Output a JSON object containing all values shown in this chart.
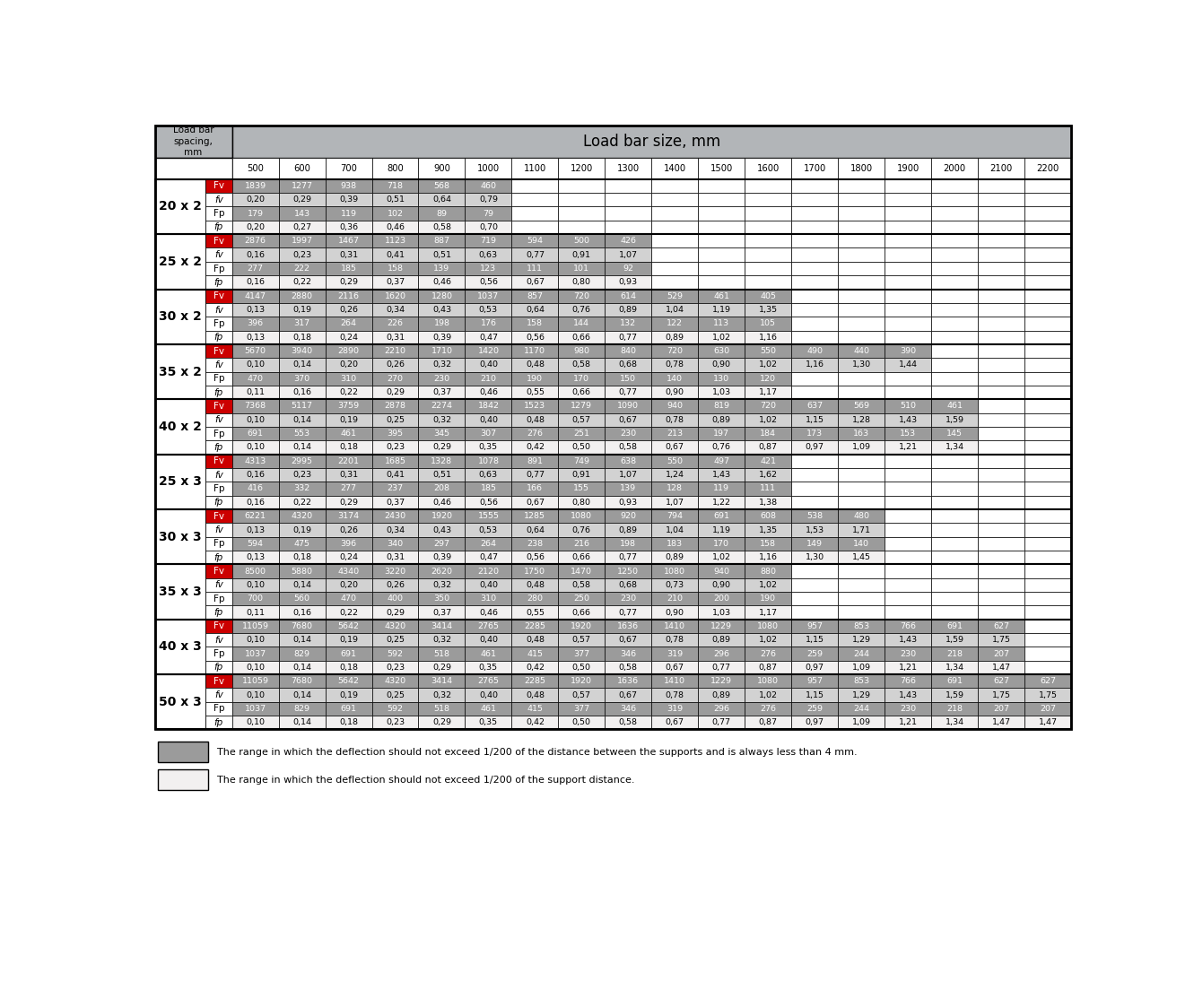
{
  "title": "Load bar size, mm",
  "col_header_label": "Load bar\nspacing,\nmm",
  "col_sizes": [
    500,
    600,
    700,
    800,
    900,
    1000,
    1100,
    1200,
    1300,
    1400,
    1500,
    1600,
    1700,
    1800,
    1900,
    2000,
    2100,
    2200
  ],
  "row_groups": [
    {
      "label": "20 x 2",
      "rows": [
        {
          "label": "Fv",
          "values": [
            "1839",
            "1277",
            "938",
            "718",
            "568",
            "460",
            "",
            "",
            "",
            "",
            "",
            "",
            "",
            "",
            "",
            "",
            "",
            ""
          ],
          "type": "Fv"
        },
        {
          "label": "fv",
          "values": [
            "0,20",
            "0,29",
            "0,39",
            "0,51",
            "0,64",
            "0,79",
            "",
            "",
            "",
            "",
            "",
            "",
            "",
            "",
            "",
            "",
            "",
            ""
          ],
          "type": "fv"
        },
        {
          "label": "Fp",
          "values": [
            "179",
            "143",
            "119",
            "102",
            "89",
            "79",
            "",
            "",
            "",
            "",
            "",
            "",
            "",
            "",
            "",
            "",
            "",
            ""
          ],
          "type": "Fp"
        },
        {
          "label": "fp",
          "values": [
            "0,20",
            "0,27",
            "0,36",
            "0,46",
            "0,58",
            "0,70",
            "",
            "",
            "",
            "",
            "",
            "",
            "",
            "",
            "",
            "",
            "",
            ""
          ],
          "type": "fp"
        }
      ]
    },
    {
      "label": "25 x 2",
      "rows": [
        {
          "label": "Fv",
          "values": [
            "2876",
            "1997",
            "1467",
            "1123",
            "887",
            "719",
            "594",
            "500",
            "426",
            "",
            "",
            "",
            "",
            "",
            "",
            "",
            "",
            ""
          ],
          "type": "Fv"
        },
        {
          "label": "fv",
          "values": [
            "0,16",
            "0,23",
            "0,31",
            "0,41",
            "0,51",
            "0,63",
            "0,77",
            "0,91",
            "1,07",
            "",
            "",
            "",
            "",
            "",
            "",
            "",
            "",
            ""
          ],
          "type": "fv"
        },
        {
          "label": "Fp",
          "values": [
            "277",
            "222",
            "185",
            "158",
            "139",
            "123",
            "111",
            "101",
            "92",
            "",
            "",
            "",
            "",
            "",
            "",
            "",
            "",
            ""
          ],
          "type": "Fp"
        },
        {
          "label": "fp",
          "values": [
            "0,16",
            "0,22",
            "0,29",
            "0,37",
            "0,46",
            "0,56",
            "0,67",
            "0,80",
            "0,93",
            "",
            "",
            "",
            "",
            "",
            "",
            "",
            "",
            ""
          ],
          "type": "fp"
        }
      ]
    },
    {
      "label": "30 x 2",
      "rows": [
        {
          "label": "Fv",
          "values": [
            "4147",
            "2880",
            "2116",
            "1620",
            "1280",
            "1037",
            "857",
            "720",
            "614",
            "529",
            "461",
            "405",
            "",
            "",
            "",
            "",
            "",
            ""
          ],
          "type": "Fv"
        },
        {
          "label": "fv",
          "values": [
            "0,13",
            "0,19",
            "0,26",
            "0,34",
            "0,43",
            "0,53",
            "0,64",
            "0,76",
            "0,89",
            "1,04",
            "1,19",
            "1,35",
            "",
            "",
            "",
            "",
            "",
            ""
          ],
          "type": "fv"
        },
        {
          "label": "Fp",
          "values": [
            "396",
            "317",
            "264",
            "226",
            "198",
            "176",
            "158",
            "144",
            "132",
            "122",
            "113",
            "105",
            "",
            "",
            "",
            "",
            "",
            ""
          ],
          "type": "Fp"
        },
        {
          "label": "fp",
          "values": [
            "0,13",
            "0,18",
            "0,24",
            "0,31",
            "0,39",
            "0,47",
            "0,56",
            "0,66",
            "0,77",
            "0,89",
            "1,02",
            "1,16",
            "",
            "",
            "",
            "",
            "",
            ""
          ],
          "type": "fp"
        }
      ]
    },
    {
      "label": "35 x 2",
      "rows": [
        {
          "label": "Fv",
          "values": [
            "5670",
            "3940",
            "2890",
            "2210",
            "1710",
            "1420",
            "1170",
            "980",
            "840",
            "720",
            "630",
            "550",
            "490",
            "440",
            "390",
            "",
            "",
            ""
          ],
          "type": "Fv"
        },
        {
          "label": "fv",
          "values": [
            "0,10",
            "0,14",
            "0,20",
            "0,26",
            "0,32",
            "0,40",
            "0,48",
            "0,58",
            "0,68",
            "0,78",
            "0,90",
            "1,02",
            "1,16",
            "1,30",
            "1,44",
            "",
            "",
            ""
          ],
          "type": "fv"
        },
        {
          "label": "Fp",
          "values": [
            "470",
            "370",
            "310",
            "270",
            "230",
            "210",
            "190",
            "170",
            "150",
            "140",
            "130",
            "120",
            "",
            "",
            "",
            "",
            "",
            ""
          ],
          "type": "Fp"
        },
        {
          "label": "fp",
          "values": [
            "0,11",
            "0,16",
            "0,22",
            "0,29",
            "0,37",
            "0,46",
            "0,55",
            "0,66",
            "0,77",
            "0,90",
            "1,03",
            "1,17",
            "",
            "",
            "",
            "",
            "",
            ""
          ],
          "type": "fp"
        }
      ]
    },
    {
      "label": "40 x 2",
      "rows": [
        {
          "label": "Fv",
          "values": [
            "7368",
            "5117",
            "3759",
            "2878",
            "2274",
            "1842",
            "1523",
            "1279",
            "1090",
            "940",
            "819",
            "720",
            "637",
            "569",
            "510",
            "461",
            "",
            ""
          ],
          "type": "Fv"
        },
        {
          "label": "fv",
          "values": [
            "0,10",
            "0,14",
            "0,19",
            "0,25",
            "0,32",
            "0,40",
            "0,48",
            "0,57",
            "0,67",
            "0,78",
            "0,89",
            "1,02",
            "1,15",
            "1,28",
            "1,43",
            "1,59",
            "",
            ""
          ],
          "type": "fv"
        },
        {
          "label": "Fp",
          "values": [
            "691",
            "553",
            "461",
            "395",
            "345",
            "307",
            "276",
            "251",
            "230",
            "213",
            "197",
            "184",
            "173",
            "163",
            "153",
            "145",
            "",
            ""
          ],
          "type": "Fp"
        },
        {
          "label": "fp",
          "values": [
            "0,10",
            "0,14",
            "0,18",
            "0,23",
            "0,29",
            "0,35",
            "0,42",
            "0,50",
            "0,58",
            "0,67",
            "0,76",
            "0,87",
            "0,97",
            "1,09",
            "1,21",
            "1,34",
            "",
            ""
          ],
          "type": "fp"
        }
      ]
    },
    {
      "label": "25 x 3",
      "rows": [
        {
          "label": "Fv",
          "values": [
            "4313",
            "2995",
            "2201",
            "1685",
            "1328",
            "1078",
            "891",
            "749",
            "638",
            "550",
            "497",
            "421",
            "",
            "",
            "",
            "",
            "",
            ""
          ],
          "type": "Fv"
        },
        {
          "label": "fv",
          "values": [
            "0,16",
            "0,23",
            "0,31",
            "0,41",
            "0,51",
            "0,63",
            "0,77",
            "0,91",
            "1,07",
            "1,24",
            "1,43",
            "1,62",
            "",
            "",
            "",
            "",
            "",
            ""
          ],
          "type": "fv"
        },
        {
          "label": "Fp",
          "values": [
            "416",
            "332",
            "277",
            "237",
            "208",
            "185",
            "166",
            "155",
            "139",
            "128",
            "119",
            "111",
            "",
            "",
            "",
            "",
            "",
            ""
          ],
          "type": "Fp"
        },
        {
          "label": "fp",
          "values": [
            "0,16",
            "0,22",
            "0,29",
            "0,37",
            "0,46",
            "0,56",
            "0,67",
            "0,80",
            "0,93",
            "1,07",
            "1,22",
            "1,38",
            "",
            "",
            "",
            "",
            "",
            ""
          ],
          "type": "fp"
        }
      ]
    },
    {
      "label": "30 x 3",
      "rows": [
        {
          "label": "Fv",
          "values": [
            "6221",
            "4320",
            "3174",
            "2430",
            "1920",
            "1555",
            "1285",
            "1080",
            "920",
            "794",
            "691",
            "608",
            "538",
            "480",
            "",
            "",
            "",
            ""
          ],
          "type": "Fv"
        },
        {
          "label": "fv",
          "values": [
            "0,13",
            "0,19",
            "0,26",
            "0,34",
            "0,43",
            "0,53",
            "0,64",
            "0,76",
            "0,89",
            "1,04",
            "1,19",
            "1,35",
            "1,53",
            "1,71",
            "",
            "",
            "",
            ""
          ],
          "type": "fv"
        },
        {
          "label": "Fp",
          "values": [
            "594",
            "475",
            "396",
            "340",
            "297",
            "264",
            "238",
            "216",
            "198",
            "183",
            "170",
            "158",
            "149",
            "140",
            "",
            "",
            "",
            ""
          ],
          "type": "Fp"
        },
        {
          "label": "fp",
          "values": [
            "0,13",
            "0,18",
            "0,24",
            "0,31",
            "0,39",
            "0,47",
            "0,56",
            "0,66",
            "0,77",
            "0,89",
            "1,02",
            "1,16",
            "1,30",
            "1,45",
            "",
            "",
            "",
            ""
          ],
          "type": "fp"
        }
      ]
    },
    {
      "label": "35 x 3",
      "rows": [
        {
          "label": "Fv",
          "values": [
            "8500",
            "5880",
            "4340",
            "3220",
            "2620",
            "2120",
            "1750",
            "1470",
            "1250",
            "1080",
            "940",
            "880",
            "",
            "",
            "",
            "",
            "",
            ""
          ],
          "type": "Fv"
        },
        {
          "label": "fv",
          "values": [
            "0,10",
            "0,14",
            "0,20",
            "0,26",
            "0,32",
            "0,40",
            "0,48",
            "0,58",
            "0,68",
            "0,73",
            "0,90",
            "1,02",
            "",
            "",
            "",
            "",
            "",
            ""
          ],
          "type": "fv"
        },
        {
          "label": "Fp",
          "values": [
            "700",
            "560",
            "470",
            "400",
            "350",
            "310",
            "280",
            "250",
            "230",
            "210",
            "200",
            "190",
            "",
            "",
            "",
            "",
            "",
            ""
          ],
          "type": "Fp"
        },
        {
          "label": "fp",
          "values": [
            "0,11",
            "0,16",
            "0,22",
            "0,29",
            "0,37",
            "0,46",
            "0,55",
            "0,66",
            "0,77",
            "0,90",
            "1,03",
            "1,17",
            "",
            "",
            "",
            "",
            "",
            ""
          ],
          "type": "fp"
        }
      ]
    },
    {
      "label": "40 x 3",
      "rows": [
        {
          "label": "Fv",
          "values": [
            "11059",
            "7680",
            "5642",
            "4320",
            "3414",
            "2765",
            "2285",
            "1920",
            "1636",
            "1410",
            "1229",
            "1080",
            "957",
            "853",
            "766",
            "691",
            "627",
            ""
          ],
          "type": "Fv"
        },
        {
          "label": "fv",
          "values": [
            "0,10",
            "0,14",
            "0,19",
            "0,25",
            "0,32",
            "0,40",
            "0,48",
            "0,57",
            "0,67",
            "0,78",
            "0,89",
            "1,02",
            "1,15",
            "1,29",
            "1,43",
            "1,59",
            "1,75",
            ""
          ],
          "type": "fv"
        },
        {
          "label": "Fp",
          "values": [
            "1037",
            "829",
            "691",
            "592",
            "518",
            "461",
            "415",
            "377",
            "346",
            "319",
            "296",
            "276",
            "259",
            "244",
            "230",
            "218",
            "207",
            ""
          ],
          "type": "Fp"
        },
        {
          "label": "fp",
          "values": [
            "0,10",
            "0,14",
            "0,18",
            "0,23",
            "0,29",
            "0,35",
            "0,42",
            "0,50",
            "0,58",
            "0,67",
            "0,77",
            "0,87",
            "0,97",
            "1,09",
            "1,21",
            "1,34",
            "1,47",
            ""
          ],
          "type": "fp"
        }
      ]
    },
    {
      "label": "50 x 3",
      "rows": [
        {
          "label": "Fv",
          "values": [
            "11059",
            "7680",
            "5642",
            "4320",
            "3414",
            "2765",
            "2285",
            "1920",
            "1636",
            "1410",
            "1229",
            "1080",
            "957",
            "853",
            "766",
            "691",
            "627",
            "627"
          ],
          "type": "Fv"
        },
        {
          "label": "fv",
          "values": [
            "0,10",
            "0,14",
            "0,19",
            "0,25",
            "0,32",
            "0,40",
            "0,48",
            "0,57",
            "0,67",
            "0,78",
            "0,89",
            "1,02",
            "1,15",
            "1,29",
            "1,43",
            "1,59",
            "1,75",
            "1,75"
          ],
          "type": "fv"
        },
        {
          "label": "Fp",
          "values": [
            "1037",
            "829",
            "691",
            "592",
            "518",
            "461",
            "415",
            "377",
            "346",
            "319",
            "296",
            "276",
            "259",
            "244",
            "230",
            "218",
            "207",
            "207"
          ],
          "type": "Fp"
        },
        {
          "label": "fp",
          "values": [
            "0,10",
            "0,14",
            "0,18",
            "0,23",
            "0,29",
            "0,35",
            "0,42",
            "0,50",
            "0,58",
            "0,67",
            "0,77",
            "0,87",
            "0,97",
            "1,09",
            "1,21",
            "1,34",
            "1,47",
            "1,47"
          ],
          "type": "fp"
        }
      ]
    }
  ],
  "colors": {
    "header_bg": "#b2b5b8",
    "Fv_label_bg": "#cc0000",
    "Fv_label_fg": "#ffffff",
    "Fv_cell_bg": "#9b9b9b",
    "Fv_cell_fg": "#ffffff",
    "fv_label_bg": "#ffffff",
    "fv_label_fg": "#000000",
    "fv_cell_bg": "#d2d2d2",
    "fv_cell_fg": "#000000",
    "Fp_label_bg": "#ffffff",
    "Fp_label_fg": "#000000",
    "Fp_cell_bg": "#9b9b9b",
    "Fp_cell_fg": "#ffffff",
    "fp_label_bg": "#ffffff",
    "fp_label_fg": "#000000",
    "fp_cell_bg": "#f2f0f0",
    "fp_cell_fg": "#000000",
    "group_label_bg": "#ffffff",
    "group_label_fg": "#000000",
    "border": "#000000",
    "empty_cell": "#ffffff"
  },
  "legend": [
    {
      "color": "#9b9b9b",
      "text": "The range in which the deflection should not exceed 1/200 of the distance between the supports and is always less than 4 mm."
    },
    {
      "color": "#f2f0f0",
      "text": "The range in which the deflection should not exceed 1/200 of the support distance."
    }
  ],
  "fig_w": 13.31,
  "fig_h": 11.13,
  "dpi": 100
}
